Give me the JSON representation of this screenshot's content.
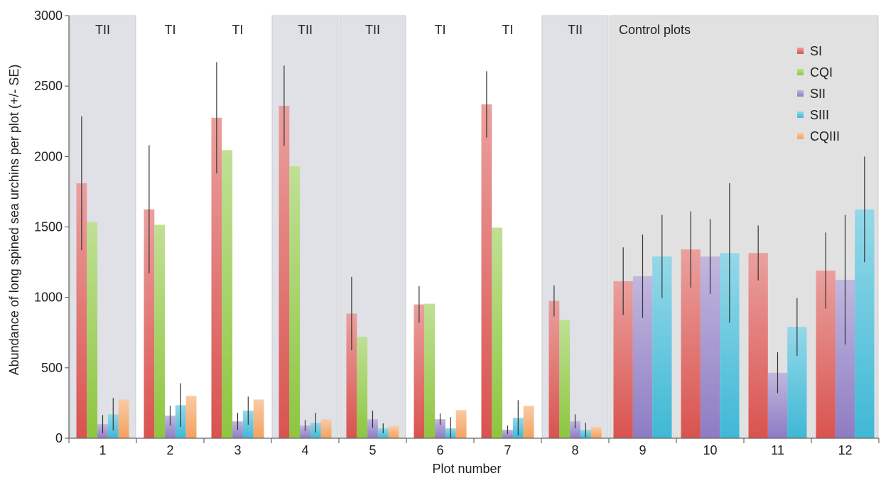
{
  "chart_data": {
    "type": "bar",
    "title": "",
    "xlabel": "Plot number",
    "ylabel": "Abundance of long spined sea urchins per plot (+/- SE)",
    "ylim": [
      0,
      3000
    ],
    "yticks": [
      0,
      500,
      1000,
      1500,
      2000,
      2500,
      3000
    ],
    "categories": [
      "1",
      "2",
      "3",
      "4",
      "5",
      "6",
      "7",
      "8",
      "9",
      "10",
      "11",
      "12"
    ],
    "regions": [
      {
        "label": "TII",
        "plots": [
          "1"
        ],
        "shaded": true
      },
      {
        "label": "TI",
        "plots": [
          "2"
        ],
        "shaded": false
      },
      {
        "label": "TI",
        "plots": [
          "3"
        ],
        "shaded": false
      },
      {
        "label": "TII",
        "plots": [
          "4"
        ],
        "shaded": true
      },
      {
        "label": "TII",
        "plots": [
          "5"
        ],
        "shaded": true
      },
      {
        "label": "TI",
        "plots": [
          "6"
        ],
        "shaded": false
      },
      {
        "label": "TI",
        "plots": [
          "7"
        ],
        "shaded": false
      },
      {
        "label": "TII",
        "plots": [
          "8"
        ],
        "shaded": true
      },
      {
        "label": "Control plots",
        "plots": [
          "9",
          "10",
          "11",
          "12"
        ],
        "shaded": true
      }
    ],
    "legend_position": "top-right",
    "series": [
      {
        "name": "SI",
        "color": "#d9534f",
        "values": [
          1810,
          1625,
          2275,
          2360,
          885,
          950,
          2370,
          975,
          1115,
          1340,
          1315,
          1190
        ],
        "errors": [
          475,
          455,
          395,
          285,
          260,
          130,
          235,
          110,
          240,
          270,
          195,
          270
        ]
      },
      {
        "name": "CQI",
        "color": "#8dc63f",
        "values": [
          1535,
          1515,
          2045,
          1930,
          720,
          955,
          1495,
          840,
          null,
          null,
          null,
          null
        ],
        "errors": [
          null,
          null,
          null,
          null,
          null,
          null,
          null,
          null,
          null,
          null,
          null,
          null
        ]
      },
      {
        "name": "SII",
        "color": "#8e7cc3",
        "values": [
          100,
          160,
          120,
          90,
          135,
          135,
          60,
          120,
          1150,
          1290,
          465,
          1125
        ],
        "errors": [
          65,
          70,
          60,
          40,
          60,
          40,
          30,
          50,
          295,
          265,
          145,
          460
        ]
      },
      {
        "name": "SIII",
        "color": "#3fb8d6",
        "values": [
          170,
          235,
          195,
          110,
          70,
          70,
          145,
          60,
          1290,
          1315,
          790,
          1625
        ],
        "errors": [
          115,
          155,
          100,
          70,
          35,
          80,
          125,
          50,
          295,
          495,
          205,
          375
        ]
      },
      {
        "name": "CQIII",
        "color": "#f4a15d",
        "values": [
          275,
          300,
          275,
          135,
          85,
          200,
          230,
          80,
          null,
          null,
          null,
          null
        ],
        "errors": [
          null,
          null,
          null,
          null,
          null,
          null,
          null,
          null,
          null,
          null,
          null,
          null
        ]
      }
    ]
  }
}
